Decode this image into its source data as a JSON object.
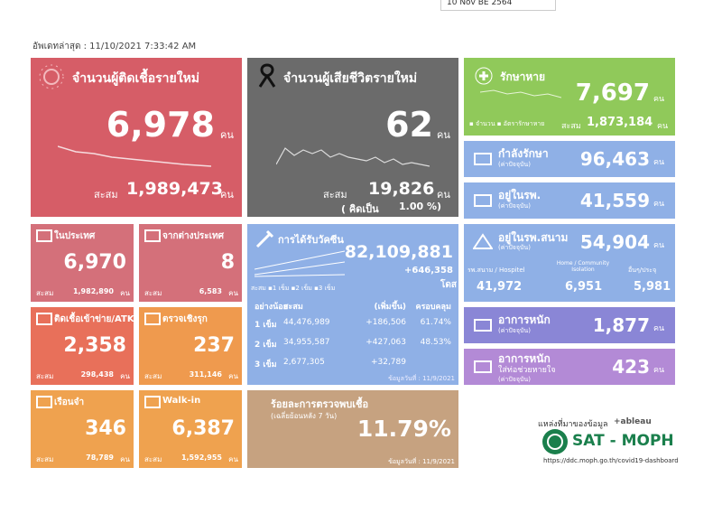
{
  "dropdown": "10 Nov BE 2564",
  "updated": "อัพเดทล่าสุด : 11/10/2021 7:33:42 AM",
  "new_cases": {
    "title": "จำนวนผู้ติดเชื้อรายใหม่",
    "value": "6,978",
    "unit": "คน",
    "total_label": "สะสม",
    "total": "1,989,473",
    "total_unit": "คน"
  },
  "new_deaths": {
    "title": "จำนวนผู้เสียชีวิตรายใหม่",
    "value": "62",
    "unit": "คน",
    "total_label": "สะสม",
    "total": "19,826",
    "total_unit": "คน",
    "rate_label": "( คิดเป็น",
    "rate": "1.00 %)"
  },
  "recovered": {
    "title": "รักษาหาย",
    "value": "7,697",
    "unit": "คน",
    "legend": [
      "จำนวน",
      "อัตรารักษาหาย"
    ],
    "total_label": "สะสม",
    "total": "1,873,184",
    "total_unit": "คน"
  },
  "treating": {
    "title": "กำลังรักษา",
    "note": "(ค่าปัจจุบัน)",
    "value": "96,463",
    "unit": "คน"
  },
  "hospital": {
    "title": "อยู่ในรพ.",
    "note": "(ค่าปัจจุบัน)",
    "value": "41,559",
    "unit": "คน"
  },
  "field_hospital": {
    "title": "อยู่ในรพ.สนาม",
    "note": "(ค่าปัจจุบัน)",
    "value": "54,904",
    "unit": "คน",
    "parts": [
      {
        "label": "รพ.สนาม / Hospitel",
        "value": "41,972"
      },
      {
        "label": "Home / Community Isolation",
        "value": "6,951"
      },
      {
        "label": "อื่นๆ/ประจุ",
        "value": "5,981"
      }
    ]
  },
  "severe": {
    "title": "อาการหนัก",
    "note": "(ค่าปัจจุบัน)",
    "value": "1,877",
    "unit": "คน"
  },
  "ventilator": {
    "title": "อาการหนัก",
    "subtitle": "ใส่ท่อช่วยหายใจ",
    "note": "(ค่าปัจจุบัน)",
    "value": "423",
    "unit": "คน"
  },
  "small_tiles": [
    {
      "title": "ในประเทศ",
      "value": "6,970",
      "total_label": "สะสม",
      "total": "1,982,890",
      "unit": "คน"
    },
    {
      "title": "จากต่างประเทศ",
      "value": "8",
      "total_label": "สะสม",
      "total": "6,583",
      "unit": "คน"
    },
    {
      "title": "ติดเชื้อเข้าข่าย/ATK",
      "value": "2,358",
      "total_label": "สะสม",
      "total": "298,438",
      "unit": "คน"
    },
    {
      "title": "ตรวจเชิงรุก",
      "value": "237",
      "total_label": "สะสม",
      "total": "311,146",
      "unit": "คน"
    },
    {
      "title": "เรือนจำ",
      "value": "346",
      "total_label": "สะสม",
      "total": "78,789",
      "unit": "คน"
    },
    {
      "title": "Walk-in",
      "value": "6,387",
      "total_label": "สะสม",
      "total": "1,592,955",
      "unit": "คน"
    }
  ],
  "vaccine": {
    "title": "การได้รับวัคซีน",
    "total": "82,109,881",
    "increase": "+646,358",
    "unit": "โดส",
    "legend": [
      "สะสม",
      "1 เข็ม",
      "2 เข็ม",
      "3 เข็ม"
    ],
    "table": {
      "header": [
        "อย่างน้อย",
        "สะสม",
        "(เพิ่มขึ้น)",
        "ครอบคลุม"
      ],
      "rows": [
        [
          "1 เข็ม",
          "44,476,989",
          "+186,506",
          "61.74%"
        ],
        [
          "2 เข็ม",
          "34,955,587",
          "+427,063",
          "48.53%"
        ],
        [
          "3 เข็ม",
          "2,677,305",
          "+32,789"
        ]
      ]
    },
    "date": "ข้อมูลวันที่ : 11/9/2021"
  },
  "positivity": {
    "title": "ร้อยละการตรวจพบเชื้อ",
    "subtitle": "(เฉลี่ยย้อนหลัง 7 วัน)",
    "value": "11.79%",
    "date": "ข้อมูลวันที่ : 11/9/2021"
  },
  "source": {
    "label": "แหล่งที่มาของข้อมูล",
    "tableau": "+ableau",
    "org": "SAT - MOPH",
    "url": "https://ddc.moph.go.th/covid19-dashboard"
  }
}
